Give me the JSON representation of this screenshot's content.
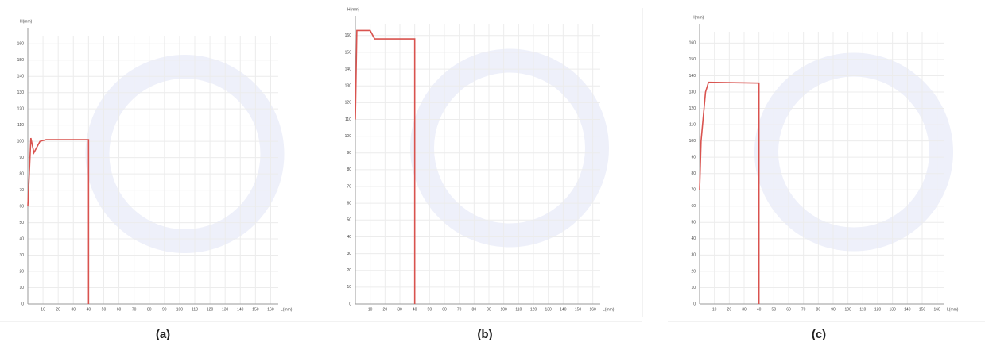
{
  "chart_data": [
    {
      "type": "line",
      "caption": "(a)",
      "y_label": "H(mm)",
      "x_label": "L(mm)",
      "color": "#d9534f",
      "grid": true,
      "x": [
        0,
        2,
        4,
        8,
        12,
        40,
        40
      ],
      "values": [
        60,
        102,
        93,
        100,
        101,
        101,
        0
      ],
      "xlim": [
        0,
        165
      ],
      "ylim": [
        0,
        165
      ],
      "xticks": [
        10,
        20,
        30,
        40,
        50,
        60,
        70,
        80,
        90,
        100,
        110,
        120,
        130,
        140,
        150,
        160
      ],
      "yticks": [
        0,
        10,
        20,
        30,
        40,
        50,
        60,
        70,
        80,
        90,
        100,
        110,
        120,
        130,
        140,
        150,
        160
      ]
    },
    {
      "type": "line",
      "caption": "(b)",
      "y_label": "H(mm)",
      "x_label": "L(mm)",
      "color": "#d9534f",
      "grid": true,
      "x": [
        0,
        1,
        6,
        10,
        13,
        40,
        40
      ],
      "values": [
        110,
        163,
        163,
        163,
        158,
        158,
        0
      ],
      "xlim": [
        0,
        165
      ],
      "ylim": [
        0,
        167
      ],
      "xticks": [
        10,
        20,
        30,
        40,
        50,
        60,
        70,
        80,
        90,
        100,
        110,
        120,
        130,
        140,
        150,
        160
      ],
      "yticks": [
        0,
        10,
        20,
        30,
        40,
        50,
        60,
        70,
        80,
        90,
        100,
        110,
        120,
        130,
        140,
        150,
        160
      ]
    },
    {
      "type": "line",
      "caption": "(c)",
      "y_label": "H(mm)",
      "x_label": "L(mm)",
      "color": "#d9534f",
      "grid": true,
      "x": [
        0,
        1,
        4,
        6,
        40,
        40
      ],
      "values": [
        70,
        100,
        130,
        136,
        135.5,
        0
      ],
      "xlim": [
        0,
        165
      ],
      "ylim": [
        0,
        167
      ],
      "xticks": [
        10,
        20,
        30,
        40,
        50,
        60,
        70,
        80,
        90,
        100,
        110,
        120,
        130,
        140,
        150,
        160
      ],
      "yticks": [
        0,
        10,
        20,
        30,
        40,
        50,
        60,
        70,
        80,
        90,
        100,
        110,
        120,
        130,
        140,
        150,
        160
      ]
    }
  ]
}
